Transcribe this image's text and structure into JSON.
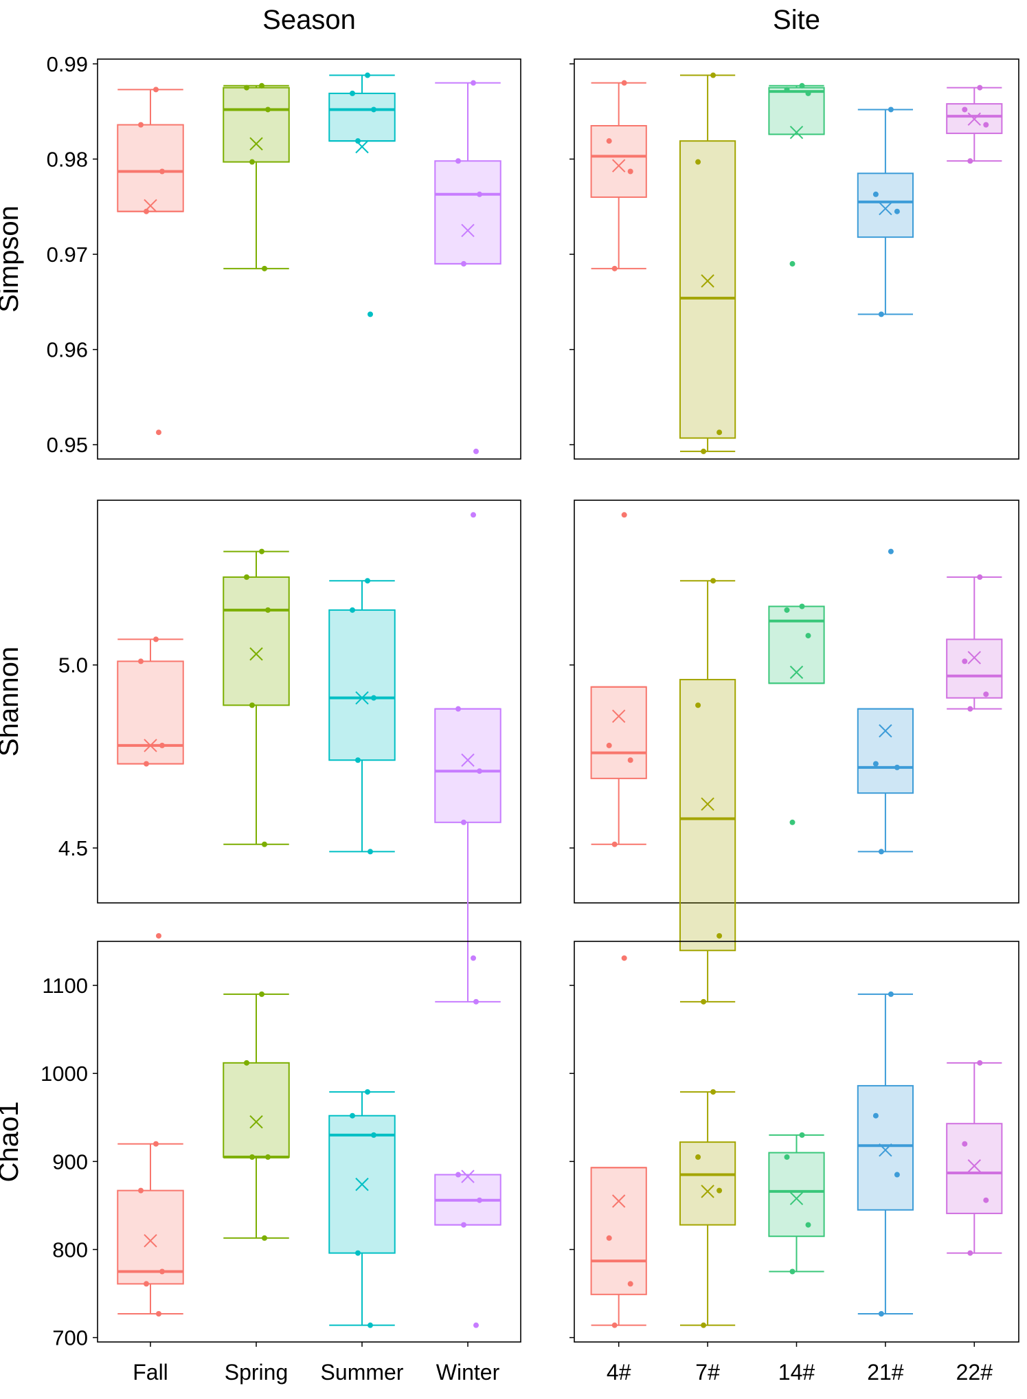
{
  "chart_data": {
    "type": "box",
    "column_titles": [
      "Season",
      "Site"
    ],
    "y_labels": [
      "Simpson",
      "Shannon",
      "Chao1"
    ],
    "metrics": [
      {
        "name": "Simpson",
        "ylim": [
          0.9485,
          0.9905
        ],
        "yticks": [
          0.95,
          0.96,
          0.97,
          0.98,
          0.99
        ],
        "ytick_labels": [
          "0.95",
          "0.96",
          "0.97",
          "0.98",
          "0.99"
        ]
      },
      {
        "name": "Shannon",
        "ylim": [
          4.35,
          5.45
        ],
        "yticks": [
          4.5,
          5.0
        ],
        "ytick_labels": [
          "4.5",
          "5.0"
        ]
      },
      {
        "name": "Chao1",
        "ylim": [
          695,
          1150
        ],
        "yticks": [
          700,
          800,
          900,
          1000,
          1100
        ],
        "ytick_labels": [
          "700",
          "800",
          "900",
          "1000",
          "1100"
        ]
      }
    ],
    "panels": {
      "Season": {
        "categories": [
          "Fall",
          "Spring",
          "Summer",
          "Winter"
        ],
        "colors": [
          "#F8766D",
          "#7CAE00",
          "#00BFC4",
          "#C77CFF"
        ],
        "Simpson": [
          {
            "whisker_low": 0.9745,
            "q1": 0.9745,
            "median": 0.9787,
            "q3": 0.9836,
            "whisker_high": 0.9873,
            "mean": 0.9751,
            "points": [
              0.9873,
              0.9836,
              0.9787,
              0.9745,
              0.9513
            ]
          },
          {
            "whisker_low": 0.9685,
            "q1": 0.9797,
            "median": 0.9852,
            "q3": 0.9875,
            "whisker_high": 0.9877,
            "mean": 0.9816,
            "points": [
              0.9877,
              0.9875,
              0.9852,
              0.9797,
              0.9685
            ]
          },
          {
            "whisker_low": 0.9819,
            "q1": 0.9819,
            "median": 0.9852,
            "q3": 0.9869,
            "whisker_high": 0.9888,
            "mean": 0.9813,
            "points": [
              0.9888,
              0.9869,
              0.9852,
              0.9819,
              0.9637
            ]
          },
          {
            "whisker_low": 0.969,
            "q1": 0.969,
            "median": 0.9763,
            "q3": 0.9798,
            "whisker_high": 0.988,
            "mean": 0.9725,
            "points": [
              0.988,
              0.9798,
              0.9763,
              0.969,
              0.9493
            ]
          }
        ],
        "Shannon": [
          {
            "whisker_low": 4.73,
            "q1": 4.73,
            "median": 4.78,
            "q3": 5.01,
            "whisker_high": 5.07,
            "mean": 4.78,
            "points": [
              5.07,
              5.01,
              4.78,
              4.73,
              4.26
            ]
          },
          {
            "whisker_low": 4.51,
            "q1": 4.89,
            "median": 5.15,
            "q3": 5.24,
            "whisker_high": 5.31,
            "mean": 5.03,
            "points": [
              5.31,
              5.24,
              5.15,
              4.89,
              4.51
            ]
          },
          {
            "whisker_low": 4.49,
            "q1": 4.74,
            "median": 4.91,
            "q3": 5.15,
            "whisker_high": 5.23,
            "mean": 4.91,
            "points": [
              5.23,
              5.15,
              4.91,
              4.74,
              4.49
            ]
          },
          {
            "whisker_low": 4.08,
            "q1": 4.57,
            "median": 4.71,
            "q3": 4.88,
            "whisker_high": 4.88,
            "mean": 4.74,
            "points": [
              5.41,
              4.88,
              4.71,
              4.57,
              4.08
            ]
          }
        ],
        "Chao1": [
          {
            "whisker_low": 727,
            "q1": 761,
            "median": 775,
            "q3": 867,
            "whisker_high": 920,
            "mean": 810,
            "points": [
              920,
              867,
              775,
              761,
              727
            ]
          },
          {
            "whisker_low": 813,
            "q1": 905,
            "median": 905,
            "q3": 1012,
            "whisker_high": 1090,
            "mean": 945,
            "points": [
              1090,
              1012,
              905,
              905,
              813
            ]
          },
          {
            "whisker_low": 714,
            "q1": 796,
            "median": 930,
            "q3": 952,
            "whisker_high": 979,
            "mean": 874,
            "points": [
              979,
              952,
              930,
              796,
              714
            ]
          },
          {
            "whisker_low": 828,
            "q1": 828,
            "median": 856,
            "q3": 885,
            "whisker_high": 885,
            "mean": 883,
            "points": [
              1131,
              885,
              856,
              828,
              714
            ]
          }
        ]
      },
      "Site": {
        "categories": [
          "4#",
          "7#",
          "14#",
          "21#",
          "22#"
        ],
        "colors": [
          "#F8766D",
          "#A3A500",
          "#39C77A",
          "#3D9CD8",
          "#D070E0"
        ],
        "Simpson": [
          {
            "whisker_low": 0.9685,
            "q1": 0.976,
            "median": 0.9803,
            "q3": 0.9835,
            "whisker_high": 0.988,
            "mean": 0.9793,
            "points": [
              0.988,
              0.9819,
              0.9787,
              0.9685
            ]
          },
          {
            "whisker_low": 0.9493,
            "q1": 0.9507,
            "median": 0.9654,
            "q3": 0.9819,
            "whisker_high": 0.9888,
            "mean": 0.9672,
            "points": [
              0.9888,
              0.9797,
              0.9513,
              0.9493
            ]
          },
          {
            "whisker_low": 0.9826,
            "q1": 0.9826,
            "median": 0.9871,
            "q3": 0.9875,
            "whisker_high": 0.9877,
            "mean": 0.9828,
            "points": [
              0.9877,
              0.9873,
              0.9869,
              0.969
            ]
          },
          {
            "whisker_low": 0.9637,
            "q1": 0.9718,
            "median": 0.9755,
            "q3": 0.9785,
            "whisker_high": 0.9852,
            "mean": 0.9748,
            "points": [
              0.9852,
              0.9763,
              0.9745,
              0.9637
            ]
          },
          {
            "whisker_low": 0.9798,
            "q1": 0.9827,
            "median": 0.9845,
            "q3": 0.9858,
            "whisker_high": 0.9875,
            "mean": 0.9842,
            "points": [
              0.9875,
              0.9852,
              0.9836,
              0.9798
            ]
          }
        ],
        "Shannon": [
          {
            "whisker_low": 4.51,
            "q1": 4.69,
            "median": 4.76,
            "q3": 4.94,
            "whisker_high": 4.94,
            "mean": 4.86,
            "points": [
              5.41,
              4.78,
              4.74,
              4.51
            ]
          },
          {
            "whisker_low": 4.08,
            "q1": 4.22,
            "median": 4.58,
            "q3": 4.96,
            "whisker_high": 5.23,
            "mean": 4.62,
            "points": [
              5.23,
              4.89,
              4.26,
              4.08
            ]
          },
          {
            "whisker_low": 4.95,
            "q1": 4.95,
            "median": 5.12,
            "q3": 5.16,
            "whisker_high": 5.16,
            "mean": 4.98,
            "points": [
              5.16,
              5.15,
              5.08,
              4.57
            ]
          },
          {
            "whisker_low": 4.49,
            "q1": 4.65,
            "median": 4.72,
            "q3": 4.88,
            "whisker_high": 4.88,
            "mean": 4.82,
            "points": [
              5.31,
              4.73,
              4.72,
              4.49
            ]
          },
          {
            "whisker_low": 4.88,
            "q1": 4.91,
            "median": 4.97,
            "q3": 5.07,
            "whisker_high": 5.24,
            "mean": 5.02,
            "points": [
              5.24,
              5.01,
              4.92,
              4.88
            ]
          }
        ],
        "Chao1": [
          {
            "whisker_low": 714,
            "q1": 749,
            "median": 787,
            "q3": 893,
            "whisker_high": 893,
            "mean": 855,
            "points": [
              1131,
              813,
              761,
              714
            ]
          },
          {
            "whisker_low": 714,
            "q1": 828,
            "median": 885,
            "q3": 922,
            "whisker_high": 979,
            "mean": 866,
            "points": [
              979,
              905,
              867,
              714
            ]
          },
          {
            "whisker_low": 775,
            "q1": 815,
            "median": 866,
            "q3": 910,
            "whisker_high": 930,
            "mean": 858,
            "points": [
              930,
              905,
              828,
              775
            ]
          },
          {
            "whisker_low": 727,
            "q1": 845,
            "median": 918,
            "q3": 986,
            "whisker_high": 1090,
            "mean": 913,
            "points": [
              1090,
              952,
              885,
              727
            ]
          },
          {
            "whisker_low": 796,
            "q1": 841,
            "median": 887,
            "q3": 943,
            "whisker_high": 1012,
            "mean": 895,
            "points": [
              1012,
              920,
              856,
              796
            ]
          }
        ]
      }
    }
  }
}
